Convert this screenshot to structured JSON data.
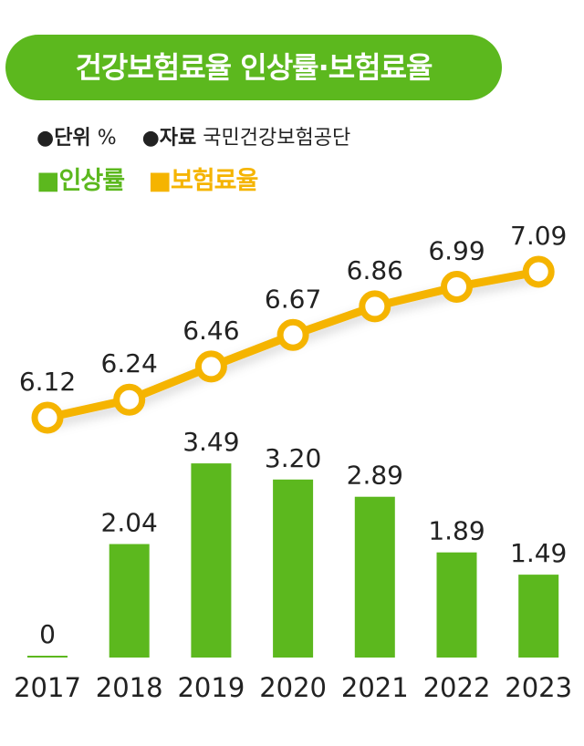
{
  "title": "건강보험료율 인상률·보험료율",
  "meta": {
    "unit_label": "●단위",
    "unit_value": "%",
    "source_label": "●자료",
    "source_value": "국민건강보험공단"
  },
  "legend": {
    "series1": "■인상률",
    "series2": "■보험료율"
  },
  "colors": {
    "bar": "#5cb81e",
    "line": "#f5b400",
    "title_bg": "#5cb81e"
  },
  "chart_data": {
    "type": "bar",
    "categories": [
      "2017",
      "2018",
      "2019",
      "2020",
      "2021",
      "2022",
      "2023"
    ],
    "series": [
      {
        "name": "인상률",
        "type": "bar",
        "values": [
          0,
          2.04,
          3.49,
          3.2,
          2.89,
          1.89,
          1.49
        ],
        "labels": [
          "0",
          "2.04",
          "3.49",
          "3.20",
          "2.89",
          "1.89",
          "1.49"
        ]
      },
      {
        "name": "보험료율",
        "type": "line",
        "values": [
          6.12,
          6.24,
          6.46,
          6.67,
          6.86,
          6.99,
          7.09
        ],
        "labels": [
          "6.12",
          "6.24",
          "6.46",
          "6.67",
          "6.86",
          "6.99",
          "7.09"
        ]
      }
    ],
    "grid": false,
    "legend_position": "top-left"
  }
}
